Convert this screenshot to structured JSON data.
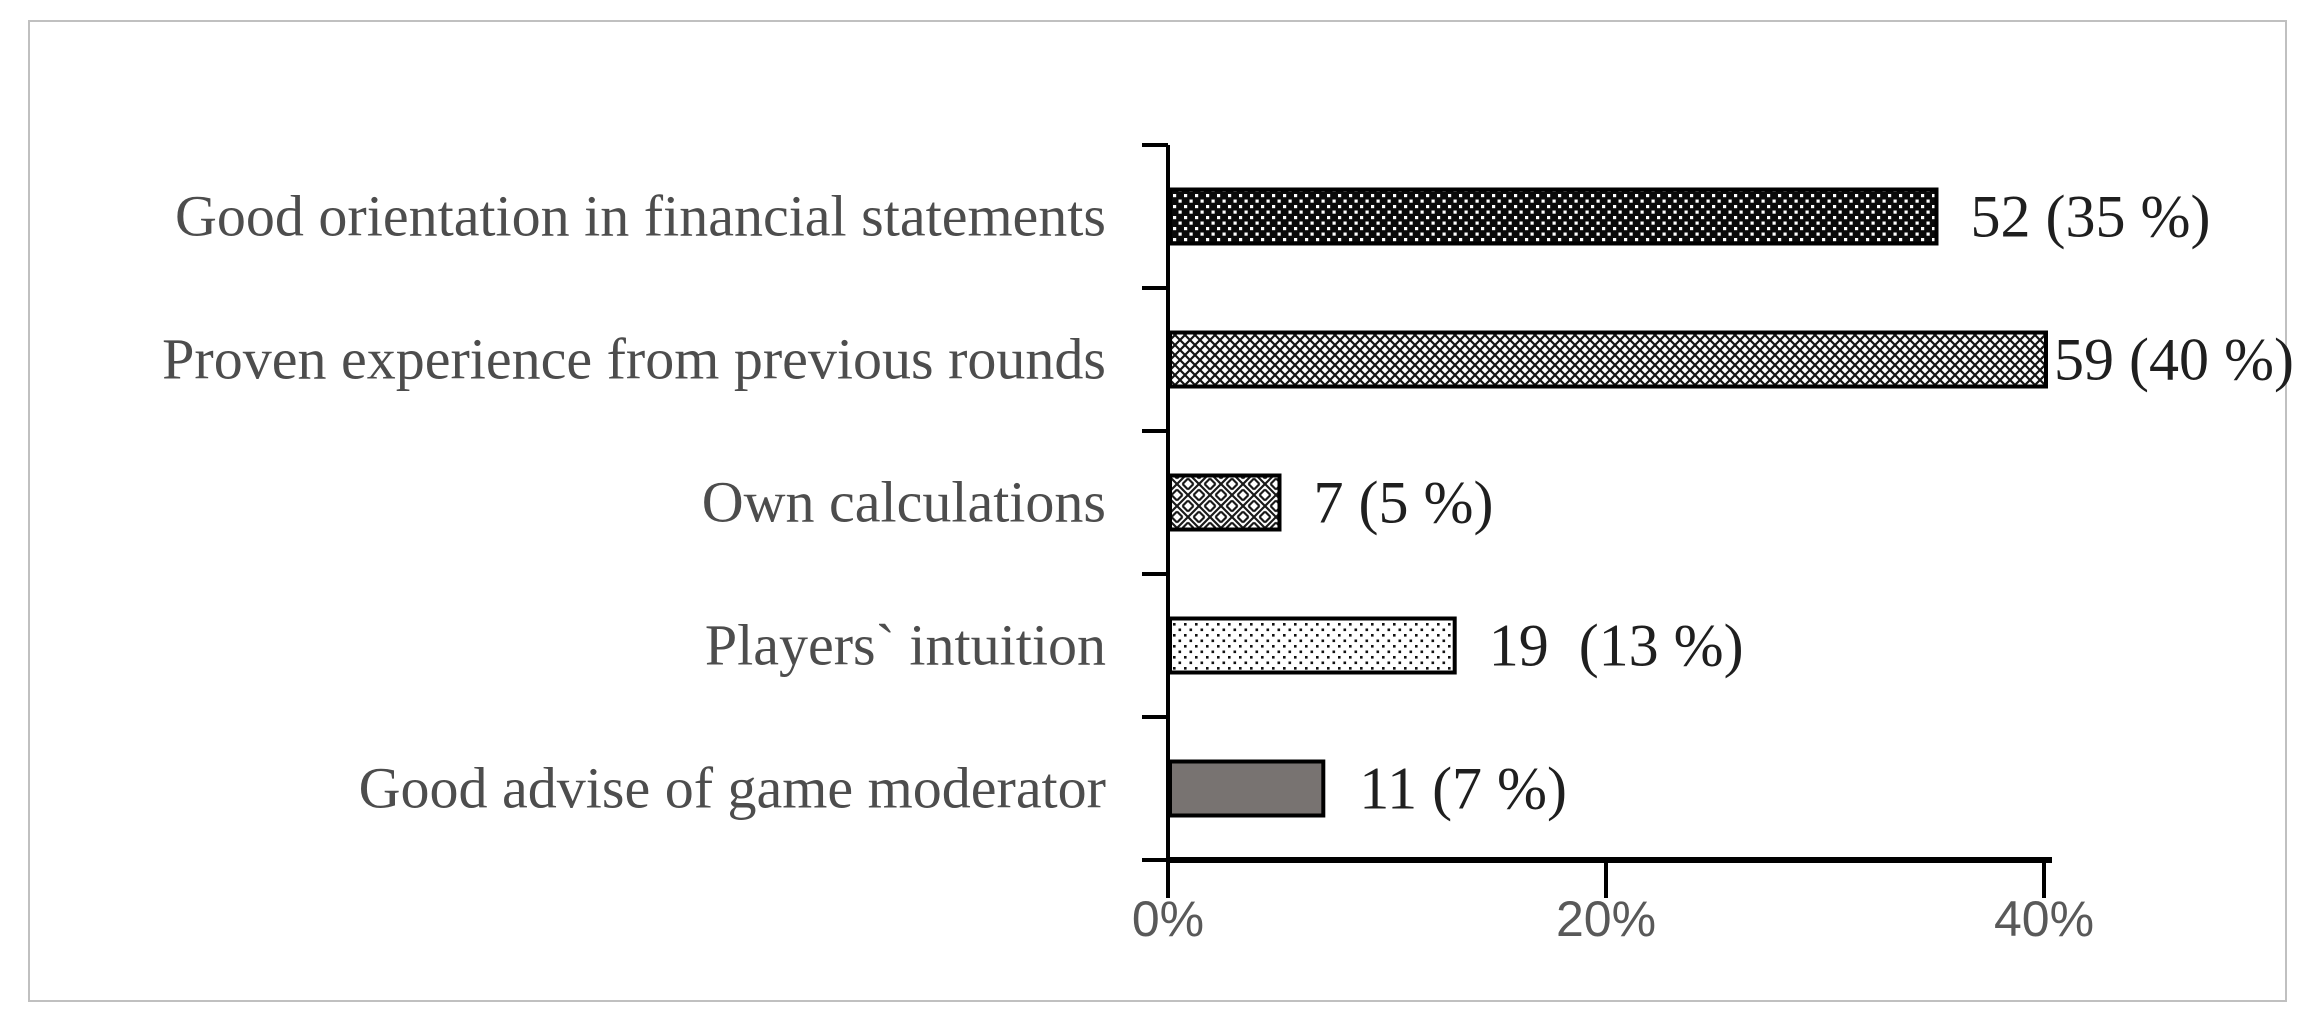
{
  "frame": {
    "border_color": "#c0c0c0",
    "background": "#ffffff"
  },
  "chart_data": {
    "type": "bar",
    "orientation": "horizontal",
    "title": "",
    "xlabel": "",
    "ylabel": "",
    "categories": [
      "Good orientation in financial statements",
      "Proven experience from previous rounds",
      "Own calculations",
      "Players` intuition",
      "Good advise of game moderator"
    ],
    "counts": [
      52,
      59,
      7,
      19,
      11
    ],
    "percent_values": [
      35,
      40,
      5,
      13,
      7
    ],
    "data_labels": [
      "52 (35 %)",
      "59 (40 %)",
      "7 (5 %)",
      "19  (13 %)",
      "11 (7 %)"
    ],
    "x_axis": {
      "max": 40,
      "ticks": [
        {
          "value": 0,
          "label": "0%"
        },
        {
          "value": 20,
          "label": "20%"
        },
        {
          "value": 40,
          "label": "40%"
        }
      ]
    },
    "grid": false,
    "legend": false,
    "bar_fills": [
      "dark-dots",
      "diamond-mesh",
      "basket-weave",
      "light-dots",
      "solid"
    ],
    "style": {
      "axis_color": "#000000",
      "bar_border_color": "#000000",
      "solid_bar_color": "#787371",
      "pattern_dark_color": "#0a0a0a",
      "pattern_light_color": "#ffffff",
      "category_label_color": "#4d4d4d",
      "data_label_color": "#1f1f1f",
      "tick_label_color": "#595959"
    }
  }
}
